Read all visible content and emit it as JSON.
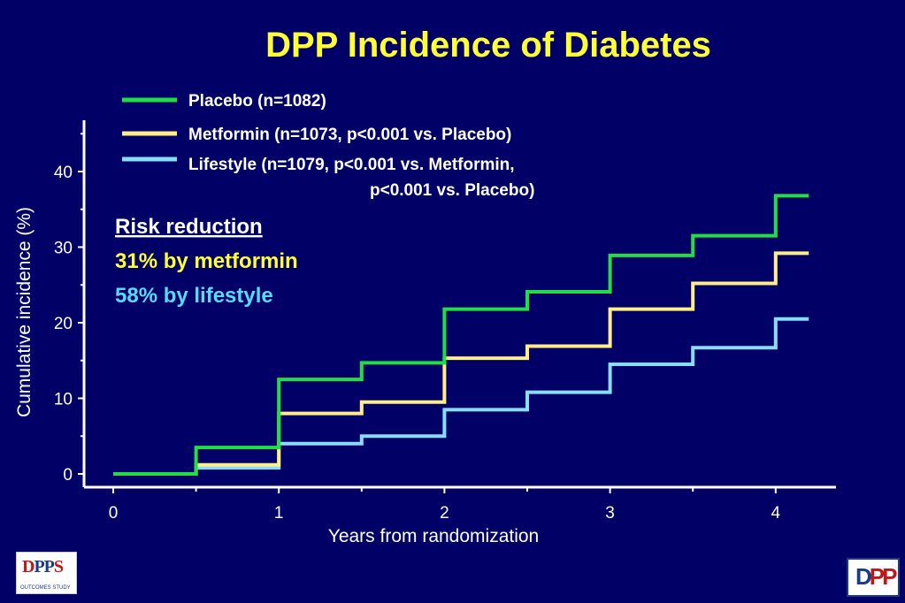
{
  "chart_data": {
    "type": "line",
    "title": "DPP Incidence of Diabetes",
    "xlabel": "Years from randomization",
    "ylabel": "Cumulative incidence (%)",
    "xlim": [
      0,
      4.2
    ],
    "ylim": [
      0,
      45
    ],
    "x_ticks": [
      "0",
      "1",
      "2",
      "3",
      "4"
    ],
    "y_ticks": [
      "0",
      "10",
      "20",
      "30",
      "40"
    ],
    "legend_position": "top",
    "series": [
      {
        "name": "Placebo (n=1082)",
        "color": "#22dd44",
        "x": [
          0,
          0.5,
          1,
          1.5,
          2,
          2.5,
          3,
          3.5,
          4,
          4.2
        ],
        "y": [
          0,
          3.5,
          12.5,
          14.7,
          21.8,
          24.1,
          28.9,
          31.5,
          36.8,
          36.8
        ]
      },
      {
        "name": "Metformin (n=1073, p<0.001 vs. Placebo)",
        "color": "#ffee88",
        "x": [
          0,
          0.5,
          1,
          1.5,
          2,
          2.5,
          3,
          3.5,
          4,
          4.2
        ],
        "y": [
          0,
          1.2,
          8.0,
          9.5,
          15.3,
          16.9,
          21.8,
          25.2,
          29.2,
          29.2
        ]
      },
      {
        "name": "Lifestyle (n=1079, p<0.001 vs. Metformin,",
        "name_line2": "p<0.001 vs. Placebo)",
        "color": "#88ddff",
        "x": [
          0,
          0.5,
          1,
          1.5,
          2,
          2.5,
          3,
          3.5,
          4,
          4.2
        ],
        "y": [
          0,
          0.8,
          4.0,
          5.0,
          8.5,
          10.8,
          14.5,
          16.7,
          20.5,
          20.5
        ]
      }
    ],
    "annotations": {
      "heading": "Risk reduction",
      "metformin": "31% by metformin",
      "lifestyle": "58% by lifestyle",
      "heading_color": "#ffffff",
      "metformin_color": "#ffff33",
      "lifestyle_color": "#55ddff"
    },
    "title_color": "#ffff33",
    "background_color": "#000066"
  },
  "logos": {
    "left_mark_a": "D",
    "left_mark_b": "PP",
    "left_mark_c": "S",
    "left_sub": "OUTCOMES STUDY",
    "right_mark_a": "D",
    "right_mark_b": "PP"
  }
}
